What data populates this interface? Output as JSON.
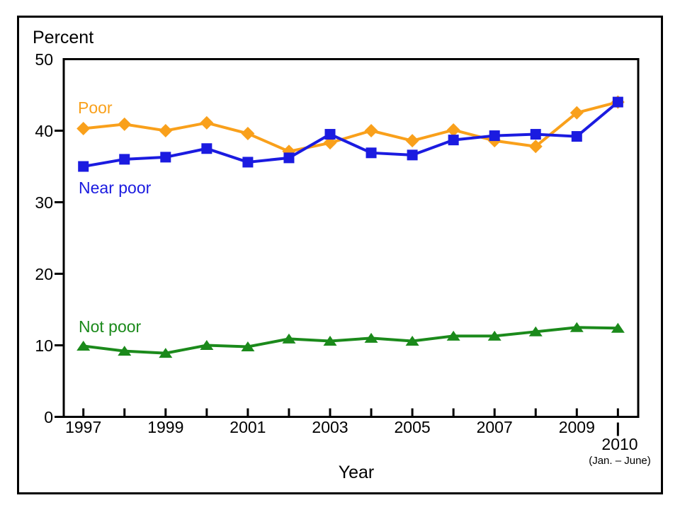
{
  "chart_data": {
    "type": "line",
    "ylabel": "Percent",
    "xlabel": "Year",
    "ylim": [
      0,
      50
    ],
    "yticks": [
      0,
      10,
      20,
      30,
      40,
      50
    ],
    "grid": "off",
    "legend": "inline-labels-near-lines",
    "x": [
      1997,
      1998,
      1999,
      2000,
      2001,
      2002,
      2003,
      2004,
      2005,
      2006,
      2007,
      2008,
      2009,
      2010
    ],
    "xtick_labeled_years": [
      "1997",
      "1999",
      "2001",
      "2003",
      "2005",
      "2007",
      "2009"
    ],
    "final_x_label": "2010",
    "final_x_note": "(Jan. – June)",
    "series": [
      {
        "name": "Poor",
        "color": "#F9A01B",
        "marker": "diamond",
        "values": [
          40.3,
          40.9,
          40.0,
          41.1,
          39.6,
          37.1,
          38.3,
          40.0,
          38.6,
          40.1,
          38.6,
          37.8,
          42.5,
          44.0
        ]
      },
      {
        "name": "Near poor",
        "color": "#1B1BE0",
        "marker": "square",
        "values": [
          35.0,
          36.0,
          36.3,
          37.5,
          35.6,
          36.2,
          39.5,
          36.9,
          36.6,
          38.7,
          39.3,
          39.5,
          39.2,
          44.0
        ]
      },
      {
        "name": "Not poor",
        "color": "#1B8A1B",
        "marker": "triangle",
        "values": [
          9.9,
          9.2,
          8.9,
          10.0,
          9.8,
          10.9,
          10.6,
          11.0,
          10.6,
          11.3,
          11.3,
          11.9,
          12.5,
          12.4
        ]
      }
    ]
  }
}
